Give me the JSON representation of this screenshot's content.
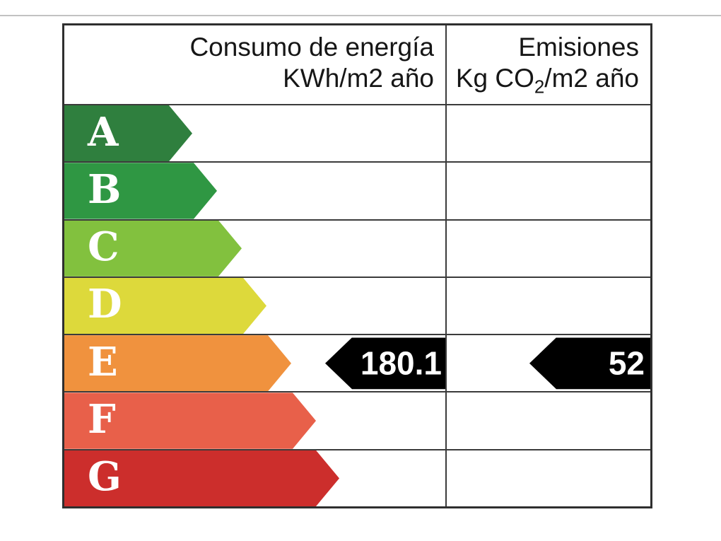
{
  "header": {
    "consumption_line1": "Consumo de energía",
    "consumption_line2": "KWh/m2 año",
    "emissions_line1": "Emisiones",
    "emissions_line2_prefix": "Kg CO",
    "emissions_line2_sub": "2",
    "emissions_line2_suffix": "/m2 año"
  },
  "ratings": [
    {
      "letter": "A",
      "color": "#2f7f3e"
    },
    {
      "letter": "B",
      "color": "#2f9743"
    },
    {
      "letter": "C",
      "color": "#82c13e"
    },
    {
      "letter": "D",
      "color": "#ddd93b"
    },
    {
      "letter": "E",
      "color": "#f0923e"
    },
    {
      "letter": "F",
      "color": "#e8604a"
    },
    {
      "letter": "G",
      "color": "#cc2e2c"
    }
  ],
  "indicators": {
    "rated_letter": "E",
    "consumption_value": "180.1",
    "emissions_value": "52",
    "arrow_color": "#000000"
  },
  "chart_data": {
    "type": "bar",
    "title": "",
    "categories": [
      "A",
      "B",
      "C",
      "D",
      "E",
      "F",
      "G"
    ],
    "rating_colors": [
      "#2f7f3e",
      "#2f9743",
      "#82c13e",
      "#ddd93b",
      "#f0923e",
      "#e8604a",
      "#cc2e2c"
    ],
    "columns": [
      {
        "label": "Consumo de energía KWh/m2 año",
        "value": 180.1,
        "rating": "E"
      },
      {
        "label": "Emisiones Kg CO2/m2 año",
        "value": 52,
        "rating": "E"
      }
    ],
    "legend_position": "none",
    "grid": true
  }
}
